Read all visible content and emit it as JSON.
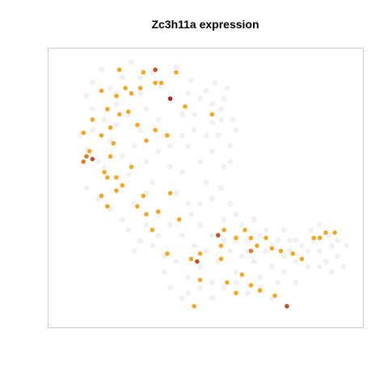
{
  "chart_data": {
    "type": "scatter",
    "title": "Zc3h11a expression",
    "xlabel": "",
    "ylabel": "",
    "grid": false,
    "legend": "none",
    "axes_visible": false,
    "xlim": [
      0,
      100
    ],
    "ylim": [
      0,
      100
    ],
    "colors": {
      "background_points": "#e6e6e6",
      "low": "#f5a623",
      "mid": "#e2782b",
      "high": "#c0502a",
      "max": "#b22222",
      "frame": "#cccccc"
    },
    "series": [
      {
        "level": "none",
        "points": [
          [
            10,
            85
          ],
          [
            12,
            90
          ],
          [
            15,
            95
          ],
          [
            18,
            88
          ],
          [
            20,
            82
          ],
          [
            22,
            92
          ],
          [
            25,
            98
          ],
          [
            28,
            86
          ],
          [
            30,
            80
          ],
          [
            32,
            94
          ],
          [
            35,
            89
          ],
          [
            38,
            83
          ],
          [
            40,
            96
          ],
          [
            42,
            78
          ],
          [
            45,
            91
          ],
          [
            48,
            84
          ],
          [
            50,
            87
          ],
          [
            52,
            75
          ],
          [
            55,
            80
          ],
          [
            57,
            88
          ],
          [
            8,
            70
          ],
          [
            10,
            65
          ],
          [
            12,
            72
          ],
          [
            14,
            60
          ],
          [
            16,
            58
          ],
          [
            18,
            68
          ],
          [
            20,
            74
          ],
          [
            22,
            62
          ],
          [
            24,
            55
          ],
          [
            26,
            66
          ],
          [
            28,
            72
          ],
          [
            30,
            60
          ],
          [
            32,
            52
          ],
          [
            34,
            64
          ],
          [
            36,
            70
          ],
          [
            38,
            58
          ],
          [
            40,
            48
          ],
          [
            42,
            56
          ],
          [
            44,
            66
          ],
          [
            46,
            72
          ],
          [
            48,
            60
          ],
          [
            50,
            52
          ],
          [
            52,
            64
          ],
          [
            54,
            70
          ],
          [
            56,
            58
          ],
          [
            58,
            66
          ],
          [
            60,
            72
          ],
          [
            52,
            82
          ],
          [
            55,
            76
          ],
          [
            58,
            60
          ],
          [
            10,
            50
          ],
          [
            14,
            46
          ],
          [
            18,
            42
          ],
          [
            22,
            38
          ],
          [
            26,
            44
          ],
          [
            30,
            48
          ],
          [
            34,
            40
          ],
          [
            38,
            36
          ],
          [
            42,
            32
          ],
          [
            46,
            28
          ],
          [
            40,
            22
          ],
          [
            36,
            18
          ],
          [
            38,
            12
          ],
          [
            42,
            8
          ],
          [
            44,
            16
          ],
          [
            48,
            20
          ],
          [
            50,
            26
          ],
          [
            52,
            14
          ],
          [
            54,
            22
          ],
          [
            56,
            30
          ],
          [
            58,
            26
          ],
          [
            60,
            18
          ],
          [
            62,
            24
          ],
          [
            64,
            30
          ],
          [
            66,
            22
          ],
          [
            68,
            16
          ],
          [
            70,
            26
          ],
          [
            72,
            20
          ],
          [
            74,
            14
          ],
          [
            76,
            24
          ],
          [
            78,
            30
          ],
          [
            80,
            22
          ],
          [
            82,
            28
          ],
          [
            84,
            20
          ],
          [
            86,
            30
          ],
          [
            88,
            26
          ],
          [
            90,
            22
          ],
          [
            92,
            28
          ],
          [
            94,
            24
          ],
          [
            96,
            20
          ],
          [
            85,
            34
          ],
          [
            88,
            36
          ],
          [
            91,
            32
          ],
          [
            94,
            30
          ],
          [
            97,
            28
          ],
          [
            62,
            36
          ],
          [
            66,
            38
          ],
          [
            70,
            34
          ],
          [
            74,
            30
          ],
          [
            78,
            26
          ],
          [
            45,
            40
          ],
          [
            48,
            44
          ],
          [
            52,
            46
          ],
          [
            55,
            50
          ],
          [
            58,
            44
          ],
          [
            60,
            40
          ],
          [
            12,
            80
          ],
          [
            16,
            76
          ],
          [
            20,
            86
          ],
          [
            24,
            78
          ],
          [
            28,
            92
          ],
          [
            44,
            86
          ],
          [
            46,
            78
          ],
          [
            50,
            70
          ],
          [
            53,
            90
          ],
          [
            56,
            84
          ],
          [
            59,
            76
          ],
          [
            34,
            76
          ],
          [
            38,
            66
          ],
          [
            42,
            70
          ],
          [
            24,
            34
          ],
          [
            28,
            30
          ],
          [
            32,
            28
          ],
          [
            36,
            24
          ],
          [
            30,
            36
          ],
          [
            34,
            32
          ],
          [
            26,
            26
          ],
          [
            44,
            44
          ],
          [
            48,
            36
          ],
          [
            52,
            32
          ],
          [
            56,
            38
          ],
          [
            60,
            30
          ],
          [
            64,
            26
          ],
          [
            68,
            32
          ],
          [
            72,
            28
          ],
          [
            76,
            34
          ],
          [
            80,
            30
          ],
          [
            84,
            26
          ],
          [
            88,
            20
          ],
          [
            92,
            18
          ],
          [
            44,
            10
          ],
          [
            48,
            12
          ],
          [
            52,
            8
          ],
          [
            56,
            12
          ],
          [
            60,
            14
          ],
          [
            64,
            10
          ],
          [
            68,
            12
          ],
          [
            72,
            8
          ],
          [
            76,
            18
          ],
          [
            80,
            14
          ]
        ]
      },
      {
        "level": "low",
        "points": [
          [
            21,
            95
          ],
          [
            29,
            94
          ],
          [
            35,
            90
          ],
          [
            40,
            94
          ],
          [
            15,
            87
          ],
          [
            20,
            85
          ],
          [
            25,
            86
          ],
          [
            17,
            80
          ],
          [
            12,
            76
          ],
          [
            9,
            71
          ],
          [
            15,
            70
          ],
          [
            18,
            73
          ],
          [
            21,
            78
          ],
          [
            24,
            79
          ],
          [
            27,
            74
          ],
          [
            30,
            68
          ],
          [
            33,
            72
          ],
          [
            37,
            70
          ],
          [
            43,
            81
          ],
          [
            52,
            78
          ],
          [
            19,
            67
          ],
          [
            18,
            62
          ],
          [
            16,
            56
          ],
          [
            17,
            54
          ],
          [
            20,
            54
          ],
          [
            22,
            51
          ],
          [
            20,
            49
          ],
          [
            15,
            47
          ],
          [
            17,
            43
          ],
          [
            25,
            58
          ],
          [
            29,
            47
          ],
          [
            27,
            43
          ],
          [
            34,
            41
          ],
          [
            38,
            48
          ],
          [
            41,
            38
          ],
          [
            32,
            34
          ],
          [
            56,
            34
          ],
          [
            60,
            31
          ],
          [
            63,
            34
          ],
          [
            65,
            31
          ],
          [
            67,
            28
          ],
          [
            70,
            31
          ],
          [
            72,
            27
          ],
          [
            75,
            26
          ],
          [
            79,
            25
          ],
          [
            82,
            23
          ],
          [
            86,
            31
          ],
          [
            88,
            31
          ],
          [
            90,
            33
          ],
          [
            93,
            33
          ],
          [
            55,
            28
          ],
          [
            55,
            23
          ],
          [
            48,
            25
          ],
          [
            45,
            23
          ],
          [
            62,
            17
          ],
          [
            57,
            14
          ],
          [
            60,
            10
          ],
          [
            65,
            13
          ],
          [
            68,
            11
          ],
          [
            73,
            9
          ],
          [
            23,
            88
          ],
          [
            28,
            88
          ],
          [
            33,
            90
          ],
          [
            11,
            64
          ],
          [
            46,
            5
          ],
          [
            48,
            15
          ],
          [
            37,
            25
          ],
          [
            30,
            40
          ]
        ]
      },
      {
        "level": "mid",
        "points": [
          [
            10,
            62
          ],
          [
            9,
            60
          ],
          [
            65,
            26
          ]
        ]
      },
      {
        "level": "high",
        "points": [
          [
            33,
            95
          ],
          [
            12,
            61
          ],
          [
            54,
            32
          ],
          [
            47,
            22
          ],
          [
            77,
            5
          ]
        ]
      },
      {
        "level": "max",
        "points": [
          [
            38,
            84
          ]
        ]
      }
    ]
  }
}
